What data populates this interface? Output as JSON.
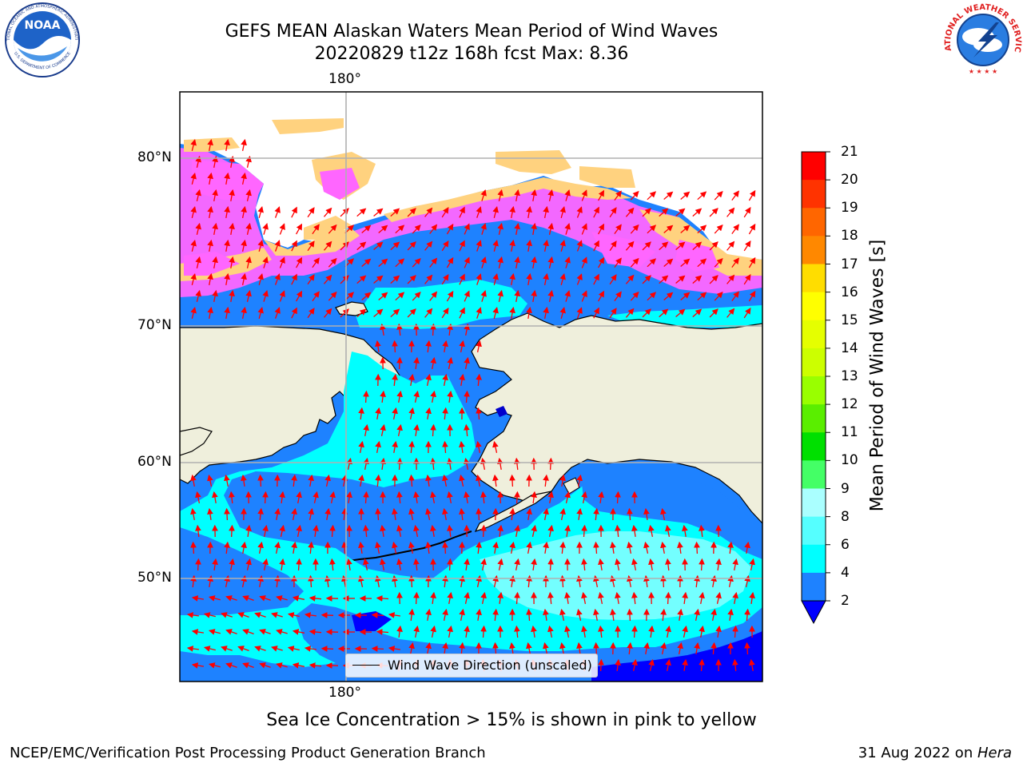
{
  "header": {
    "title_line1": "GEFS MEAN Alaskan Waters Mean Period of Wind Waves",
    "title_line2": "20220829 t12z 168h fcst   Max: 8.36"
  },
  "logos": {
    "left": "NOAA",
    "left_ring_top": "NATIONAL OCEANIC AND ATMOSPHERIC ADMINISTRATION",
    "left_ring_bottom": "U.S. DEPARTMENT OF COMMERCE",
    "right_ring": "NATIONAL WEATHER SERVICE"
  },
  "map": {
    "lon_label_top": "180°",
    "lon_label_bottom": "180°",
    "lat_labels": [
      "80°N",
      "70°N",
      "60°N",
      "50°N"
    ],
    "legend_label": "Wind Wave Direction (unscaled)",
    "colors": {
      "land": "#efefdc",
      "ice_pink": "#ff66ff",
      "ice_yellow": "#ffd27f",
      "wave_2_4": "#1e82ff",
      "wave_4_6": "#00ffff",
      "wave_6_8": "#80ffff",
      "arrows": "#ff0000",
      "grid": "#b0b0b0"
    }
  },
  "colorbar": {
    "label": "Mean Period of Wind Waves [s]",
    "ticks": [
      "21",
      "20",
      "19",
      "18",
      "17",
      "16",
      "15",
      "14",
      "13",
      "12",
      "11",
      "10",
      "9",
      "8",
      "6",
      "4",
      "2"
    ],
    "colors": [
      "#ff0000",
      "#ff3300",
      "#ff6600",
      "#ff8800",
      "#ffaa00",
      "#ffdd00",
      "#ffff00",
      "#e5ff00",
      "#ccff00",
      "#99ff00",
      "#5aee00",
      "#00e000",
      "#44ff66",
      "#55ffaa",
      "#aaffff",
      "#55ffff",
      "#00ffff",
      "#1e82ff"
    ],
    "extend_color": "#0000ff"
  },
  "caption": "Sea Ice Concentration > 15% is shown in pink to yellow",
  "footer": {
    "left": "NCEP/EMC/Verification Post Processing Product Generation Branch",
    "date": "31 Aug 2022 on ",
    "host": "Hera"
  }
}
